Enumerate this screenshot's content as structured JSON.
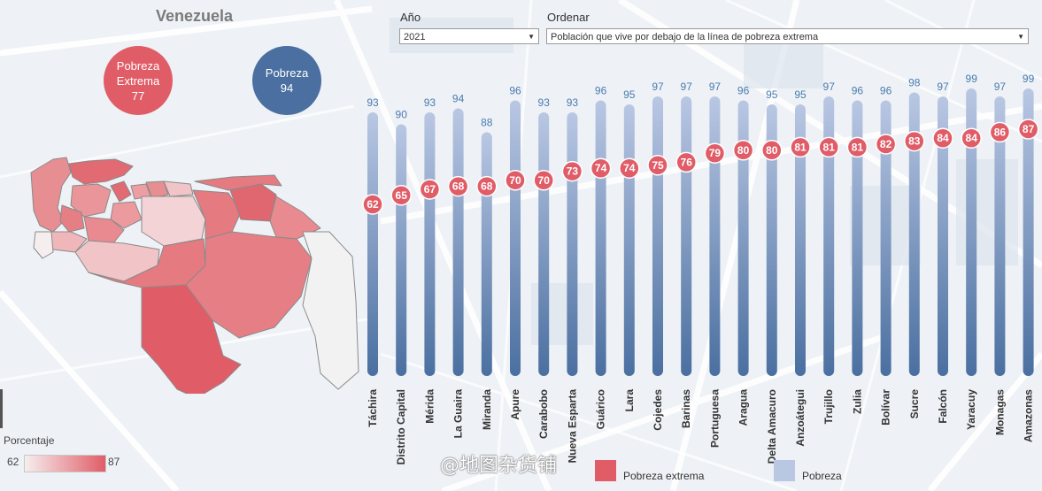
{
  "title": "Venezuela",
  "summary": {
    "extreme": {
      "label_line1": "Pobreza",
      "label_line2": "Extrema",
      "value": "77"
    },
    "poverty": {
      "label": "Pobreza",
      "value": "94"
    }
  },
  "controls": {
    "year_label": "Año",
    "year_value": "2021",
    "sort_label": "Ordenar",
    "sort_value": "Población que vive por debajo de la línea de pobreza extrema"
  },
  "map_legend": {
    "title": "Porcentaje",
    "min": "62",
    "max": "87"
  },
  "colors": {
    "extreme": "#e05d68",
    "poverty_top": "#b9c7e3",
    "poverty_bottom": "#4a6fa0",
    "map_light": "#f2f2f2",
    "map_stroke": "#8a8a8a"
  },
  "chart_data": {
    "type": "bar",
    "title": "",
    "categories": [
      "Táchira",
      "Distrito Capital",
      "Mérida",
      "La Guaira",
      "Miranda",
      "Apure",
      "Carabobo",
      "Nueva Esparta",
      "Guárico",
      "Lara",
      "Cojedes",
      "Barinas",
      "Portuguesa",
      "Aragua",
      "Delta Amacuro",
      "Anzoátegui",
      "Trujillo",
      "Zulia",
      "Bolívar",
      "Sucre",
      "Falcón",
      "Yaracuy",
      "Monagas",
      "Amazonas"
    ],
    "series": [
      {
        "name": "Pobreza",
        "values": [
          93,
          90,
          93,
          94,
          88,
          96,
          93,
          93,
          96,
          95,
          97,
          97,
          97,
          96,
          95,
          95,
          97,
          96,
          96,
          98,
          97,
          99,
          97,
          99
        ]
      },
      {
        "name": "Pobreza extrema",
        "values": [
          62,
          65,
          67,
          68,
          68,
          70,
          70,
          73,
          74,
          74,
          75,
          76,
          79,
          80,
          80,
          81,
          81,
          81,
          82,
          83,
          84,
          84,
          86,
          87
        ]
      }
    ],
    "ylim": [
      0,
      100
    ],
    "legend": [
      "Pobreza extrema",
      "Pobreza"
    ]
  },
  "watermark": "@地图杂货铺"
}
